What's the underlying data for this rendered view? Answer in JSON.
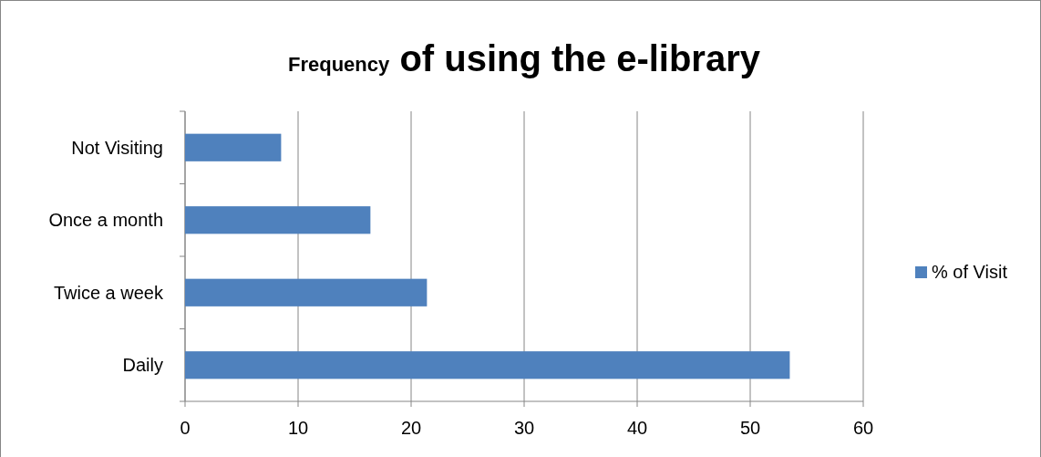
{
  "chart_data": {
    "type": "bar",
    "orientation": "horizontal",
    "title": "Frequency of using the e-library",
    "categories": [
      "Not Visiting",
      "Once a month",
      "Twice a week",
      "Daily"
    ],
    "series": [
      {
        "name": "% of Visit",
        "color": "#4f81bd",
        "values": [
          8.5,
          16.4,
          21.4,
          53.5
        ]
      }
    ],
    "xlim": [
      0,
      60
    ],
    "xticks": [
      0,
      10,
      20,
      30,
      40,
      50,
      60
    ],
    "grid": "x",
    "legend": "right"
  }
}
